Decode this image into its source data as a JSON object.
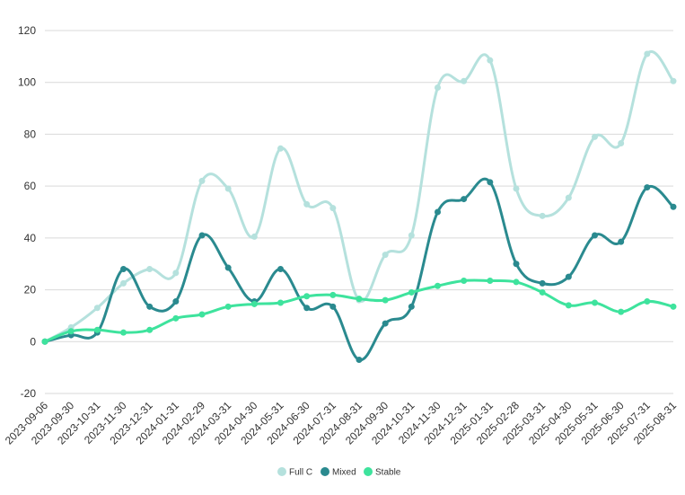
{
  "chart_data": {
    "type": "line",
    "title": "",
    "xlabel": "",
    "ylabel": "",
    "ylim": [
      -20,
      120
    ],
    "yticks": [
      -20,
      0,
      20,
      40,
      60,
      80,
      100,
      120
    ],
    "grid": true,
    "legend_position": "bottom",
    "x": [
      "2023-09-06",
      "2023-09-30",
      "2023-10-31",
      "2023-11-30",
      "2023-12-31",
      "2024-01-31",
      "2024-02-29",
      "2024-03-31",
      "2024-04-30",
      "2024-05-31",
      "2024-06-30",
      "2024-07-31",
      "2024-08-31",
      "2024-09-30",
      "2024-10-31",
      "2024-11-30",
      "2024-12-31",
      "2025-01-31",
      "2025-02-28",
      "2025-03-31",
      "2025-04-30",
      "2025-05-31",
      "2025-06-30",
      "2025-07-31",
      "2025-08-31"
    ],
    "series": [
      {
        "name": "Full C",
        "color": "#b5e1dd",
        "values": [
          0,
          5.5,
          13,
          22.5,
          28,
          26.5,
          62,
          59,
          40.5,
          74.5,
          53,
          51.5,
          16,
          33.5,
          41,
          98,
          100.5,
          108.5,
          59,
          48.5,
          55.5,
          79,
          76.5,
          111,
          100.5
        ]
      },
      {
        "name": "Mixed",
        "color": "#2a8a8f",
        "values": [
          0,
          2.5,
          3.5,
          28,
          13.5,
          15.5,
          41,
          28.5,
          15.5,
          28,
          13,
          13.5,
          -7,
          7,
          13.5,
          50,
          55,
          61.5,
          30,
          22.5,
          25,
          41,
          38.5,
          59.5,
          52
        ]
      },
      {
        "name": "Stable",
        "color": "#3ee39d",
        "values": [
          0,
          4,
          4.5,
          3.5,
          4.5,
          9,
          10.5,
          13.5,
          14.5,
          15,
          17.5,
          18,
          16.5,
          16,
          19,
          21.5,
          23.5,
          23.5,
          23,
          19,
          14,
          15,
          11.5,
          15.5,
          13.5
        ]
      }
    ]
  }
}
